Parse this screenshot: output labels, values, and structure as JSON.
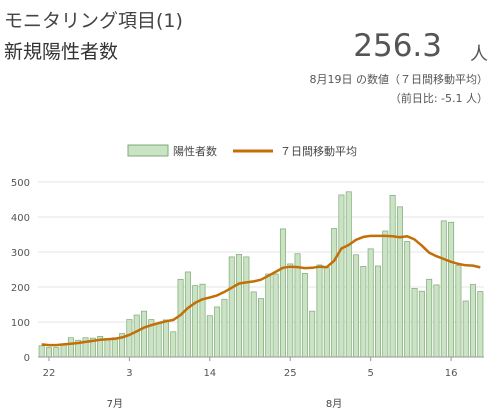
{
  "header": {
    "title": "モニタリング項目(1)",
    "subtitle": "新規陽性者数",
    "value": "256.3",
    "unit": "人",
    "date_note": "8月19日 の数値（７日間移動平均）",
    "diff_note": "（前日比: -5.1 人）"
  },
  "colors": {
    "bar_fill": "#c9e3c3",
    "bar_stroke": "#7ea877",
    "line": "#c36f07",
    "grid": "#e6e6e6"
  },
  "chart_data": {
    "type": "bar",
    "legend": {
      "position": "top-center",
      "bar_label": "陽性者数",
      "line_label": "７日間移動平均"
    },
    "ylim": [
      0,
      500
    ],
    "yticks": [
      0,
      100,
      200,
      300,
      400,
      500
    ],
    "grid": true,
    "x_tick_labels": [
      {
        "index": 1,
        "label": "22"
      },
      {
        "index": 12,
        "label": "3"
      },
      {
        "index": 23,
        "label": "14"
      },
      {
        "index": 34,
        "label": "25"
      },
      {
        "index": 45,
        "label": "5"
      },
      {
        "index": 56,
        "label": "16"
      }
    ],
    "month_labels": [
      {
        "index": 10,
        "label": "7月"
      },
      {
        "index": 40,
        "label": "8月"
      }
    ],
    "series": [
      {
        "type": "bar",
        "values": [
          32,
          27,
          27,
          37,
          55,
          48,
          55,
          54,
          59,
          52,
          55,
          67,
          107,
          120,
          131,
          107,
          95,
          106,
          72,
          222,
          243,
          204,
          208,
          118,
          143,
          165,
          286,
          293,
          286,
          186,
          167,
          237,
          237,
          366,
          266,
          295,
          239,
          131,
          263,
          255,
          367,
          463,
          472,
          292,
          259,
          309,
          260,
          360,
          462,
          429,
          330,
          196,
          188,
          222,
          206,
          389,
          385,
          262,
          160,
          207,
          187
        ]
      },
      {
        "type": "line",
        "name": "７日間移動平均",
        "values": [
          36,
          34,
          34,
          36,
          38,
          40,
          43,
          46,
          49,
          51,
          52,
          56,
          63,
          73,
          84,
          91,
          97,
          102,
          106,
          120,
          140,
          155,
          165,
          170,
          176,
          186,
          198,
          210,
          213,
          216,
          221,
          232,
          243,
          255,
          258,
          257,
          254,
          255,
          258,
          257,
          275,
          310,
          320,
          335,
          343,
          346,
          346,
          346,
          345,
          342,
          345,
          336,
          318,
          298,
          288,
          280,
          272,
          266,
          262,
          261,
          256
        ]
      }
    ]
  }
}
